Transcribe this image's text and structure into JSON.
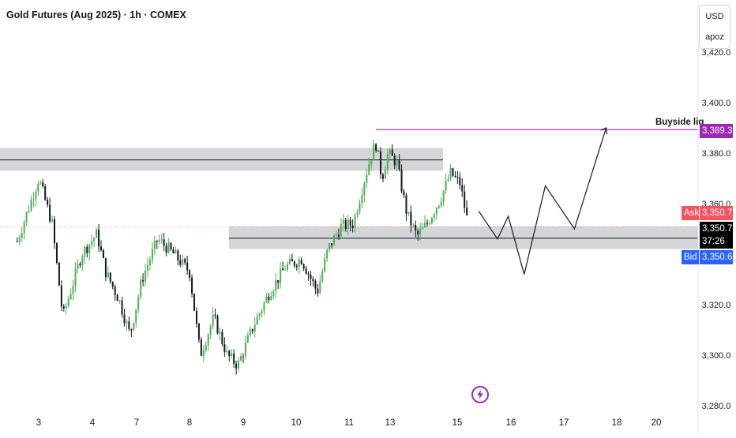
{
  "header": {
    "title": "Gold Futures (Aug 2025) · 1h · COMEX"
  },
  "currency_box": {
    "currency": "USD",
    "unit": "apoz"
  },
  "colors": {
    "up": "#4caf50",
    "down": "#131722",
    "zone": "#c8cacd",
    "liquidity": "#b03cc0",
    "ask": "#f23645",
    "bid": "#2962ff",
    "current": "#000000"
  },
  "price_tags": {
    "liquidity": "3,389.3",
    "ask_label": "Ask",
    "ask": "3,350.7",
    "current": "3,350.7",
    "countdown": "37:26",
    "bid_label": "Bid",
    "bid": "3,350.6"
  },
  "annotation": {
    "text": "Buyside liq"
  },
  "chart_data": {
    "type": "candlestick",
    "title": "Gold Futures (Aug 2025) · 1h · COMEX",
    "ylim": [
      3276,
      3432
    ],
    "y_ticks": [
      {
        "value": 3420,
        "label": "3,420.0"
      },
      {
        "value": 3400,
        "label": "3,400.0"
      },
      {
        "value": 3380,
        "label": "3,380.0"
      },
      {
        "value": 3360,
        "label": "3,360.0"
      },
      {
        "value": 3320,
        "label": "3,320.0"
      },
      {
        "value": 3300,
        "label": "3,300.0"
      },
      {
        "value": 3280,
        "label": "3,280.0"
      }
    ],
    "x_ticks": [
      "3",
      "4",
      "7",
      "8",
      "9",
      "10",
      "11",
      "13",
      "15",
      "16",
      "17",
      "18",
      "20"
    ],
    "price_path": [
      {
        "day": 2.6,
        "price": 3345
      },
      {
        "day": 3.0,
        "price": 3370
      },
      {
        "day": 3.25,
        "price": 3352
      },
      {
        "day": 3.45,
        "price": 3315
      },
      {
        "day": 3.8,
        "price": 3340
      },
      {
        "day": 4.1,
        "price": 3348
      },
      {
        "day": 4.3,
        "price": 3333
      },
      {
        "day": 4.6,
        "price": 3322
      },
      {
        "day": 4.85,
        "price": 3308
      },
      {
        "day": 5.1,
        "price": 3330
      },
      {
        "day": 5.4,
        "price": 3346
      },
      {
        "day": 5.7,
        "price": 3340
      },
      {
        "day": 6.0,
        "price": 3333
      },
      {
        "day": 6.2,
        "price": 3300
      },
      {
        "day": 6.45,
        "price": 3315
      },
      {
        "day": 6.7,
        "price": 3300
      },
      {
        "day": 6.9,
        "price": 3296
      },
      {
        "day": 7.2,
        "price": 3312
      },
      {
        "day": 7.5,
        "price": 3325
      },
      {
        "day": 7.8,
        "price": 3335
      },
      {
        "day": 8.1,
        "price": 3338
      },
      {
        "day": 8.4,
        "price": 3325
      },
      {
        "day": 8.6,
        "price": 3342
      },
      {
        "day": 8.85,
        "price": 3351
      },
      {
        "day": 9.1,
        "price": 3352
      },
      {
        "day": 9.35,
        "price": 3368
      },
      {
        "day": 9.5,
        "price": 3377
      },
      {
        "day": 9.65,
        "price": 3384
      },
      {
        "day": 9.8,
        "price": 3370
      },
      {
        "day": 9.95,
        "price": 3380
      },
      {
        "day": 10.1,
        "price": 3376
      },
      {
        "day": 10.25,
        "price": 3356
      },
      {
        "day": 10.4,
        "price": 3347
      },
      {
        "day": 10.55,
        "price": 3352
      },
      {
        "day": 10.75,
        "price": 3362
      },
      {
        "day": 10.9,
        "price": 3372
      },
      {
        "day": 11.05,
        "price": 3368
      },
      {
        "day": 11.2,
        "price": 3352
      }
    ],
    "drawings": {
      "upper_zone": {
        "from": 3373,
        "to": 3382,
        "line": 3377.3
      },
      "lower_zone": {
        "from": 3342,
        "to": 3351,
        "line": 3346.3
      },
      "buyside_liquidity": 3389.3,
      "projection": [
        {
          "day": 11.4,
          "price": 3357
        },
        {
          "day": 11.75,
          "price": 3346
        },
        {
          "day": 11.95,
          "price": 3355
        },
        {
          "day": 12.25,
          "price": 3332
        },
        {
          "day": 12.65,
          "price": 3367
        },
        {
          "day": 13.2,
          "price": 3350
        },
        {
          "day": 13.8,
          "price": 3390
        }
      ]
    }
  }
}
